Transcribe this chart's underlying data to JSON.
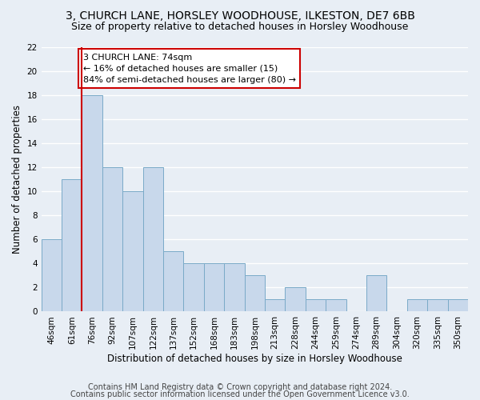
{
  "title1": "3, CHURCH LANE, HORSLEY WOODHOUSE, ILKESTON, DE7 6BB",
  "title2": "Size of property relative to detached houses in Horsley Woodhouse",
  "xlabel": "Distribution of detached houses by size in Horsley Woodhouse",
  "ylabel": "Number of detached properties",
  "footnote1": "Contains HM Land Registry data © Crown copyright and database right 2024.",
  "footnote2": "Contains public sector information licensed under the Open Government Licence v3.0.",
  "categories": [
    "46sqm",
    "61sqm",
    "76sqm",
    "92sqm",
    "107sqm",
    "122sqm",
    "137sqm",
    "152sqm",
    "168sqm",
    "183sqm",
    "198sqm",
    "213sqm",
    "228sqm",
    "244sqm",
    "259sqm",
    "274sqm",
    "289sqm",
    "304sqm",
    "320sqm",
    "335sqm",
    "350sqm"
  ],
  "values": [
    6,
    11,
    18,
    12,
    10,
    12,
    5,
    4,
    4,
    4,
    3,
    1,
    2,
    1,
    1,
    0,
    3,
    0,
    1,
    1,
    1
  ],
  "bar_color": "#c8d8eb",
  "bar_edge_color": "#7aaac8",
  "red_line_index": 2,
  "red_line_color": "#cc0000",
  "annotation_text": "3 CHURCH LANE: 74sqm\n← 16% of detached houses are smaller (15)\n84% of semi-detached houses are larger (80) →",
  "annotation_box_color": "#ffffff",
  "annotation_border_color": "#cc0000",
  "ylim": [
    0,
    22
  ],
  "yticks": [
    0,
    2,
    4,
    6,
    8,
    10,
    12,
    14,
    16,
    18,
    20,
    22
  ],
  "background_color": "#e8eef5",
  "fig_background_color": "#e8eef5",
  "grid_color": "#ffffff",
  "title1_fontsize": 10,
  "title2_fontsize": 9,
  "xlabel_fontsize": 8.5,
  "ylabel_fontsize": 8.5,
  "tick_fontsize": 7.5,
  "footnote_fontsize": 7,
  "annotation_fontsize": 8
}
